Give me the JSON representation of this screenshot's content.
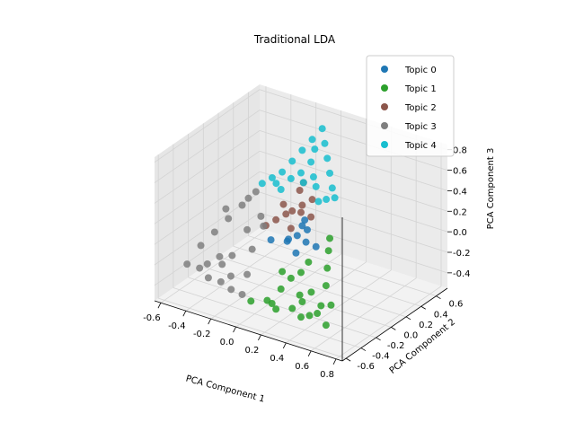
{
  "chart_data": {
    "type": "scatter",
    "projection": "3d",
    "title": "Traditional LDA",
    "xlabel": "PCA Component 1",
    "ylabel": "PCA Component 2",
    "zlabel": "PCA Component 3",
    "xlim": [
      -0.65,
      0.85
    ],
    "ylim": [
      -0.65,
      0.75
    ],
    "zlim": [
      -0.55,
      0.85
    ],
    "xticks": [
      "-0.6",
      "-0.4",
      "-0.2",
      "0.0",
      "0.2",
      "0.4",
      "0.6",
      "0.8"
    ],
    "yticks": [
      "-0.6",
      "-0.4",
      "-0.2",
      "0.0",
      "0.2",
      "0.4",
      "0.6"
    ],
    "zticks": [
      "-0.4",
      "-0.2",
      "0.0",
      "0.2",
      "0.4",
      "0.6",
      "0.8"
    ],
    "grid": true,
    "legend_position": "top-right",
    "series": [
      {
        "name": "Topic 0",
        "color": "#1f77b4",
        "points": [
          [
            0.1,
            0.0,
            0.05
          ],
          [
            0.05,
            -0.05,
            0.0
          ],
          [
            0.15,
            0.05,
            0.1
          ],
          [
            0.0,
            0.05,
            -0.05
          ],
          [
            0.2,
            -0.05,
            0.05
          ],
          [
            0.1,
            0.1,
            0.15
          ],
          [
            -0.05,
            -0.1,
            0.0
          ],
          [
            0.15,
            -0.1,
            -0.05
          ],
          [
            0.05,
            0.15,
            0.05
          ],
          [
            0.25,
            0.0,
            0.0
          ]
        ]
      },
      {
        "name": "Topic 1",
        "color": "#2ca02c",
        "points": [
          [
            0.6,
            -0.45,
            -0.4
          ],
          [
            0.5,
            -0.4,
            -0.35
          ],
          [
            0.4,
            -0.45,
            -0.4
          ],
          [
            0.3,
            -0.4,
            -0.38
          ],
          [
            0.2,
            -0.45,
            -0.4
          ],
          [
            0.1,
            -0.4,
            -0.38
          ],
          [
            0.0,
            -0.45,
            -0.4
          ],
          [
            0.55,
            -0.3,
            -0.3
          ],
          [
            0.45,
            -0.2,
            -0.2
          ],
          [
            0.4,
            -0.1,
            -0.1
          ],
          [
            0.35,
            0.0,
            0.0
          ],
          [
            0.3,
            0.1,
            0.05
          ],
          [
            0.25,
            -0.2,
            -0.15
          ],
          [
            0.3,
            -0.3,
            -0.3
          ],
          [
            0.2,
            -0.25,
            -0.2
          ],
          [
            0.15,
            -0.3,
            -0.3
          ],
          [
            0.1,
            -0.2,
            -0.2
          ],
          [
            0.35,
            -0.35,
            -0.32
          ],
          [
            0.5,
            -0.35,
            -0.3
          ],
          [
            0.45,
            -0.42,
            -0.38
          ],
          [
            0.15,
            -0.42,
            -0.38
          ],
          [
            0.25,
            -0.1,
            -0.1
          ],
          [
            0.38,
            -0.28,
            -0.25
          ]
        ]
      },
      {
        "name": "Topic 2",
        "color": "#8c564b",
        "points": [
          [
            0.0,
            0.1,
            0.2
          ],
          [
            0.05,
            0.15,
            0.25
          ],
          [
            -0.1,
            0.05,
            0.1
          ],
          [
            0.1,
            0.2,
            0.3
          ],
          [
            0.0,
            0.2,
            0.35
          ],
          [
            -0.05,
            0.1,
            0.15
          ],
          [
            0.15,
            0.1,
            0.2
          ],
          [
            0.05,
            0.0,
            0.1
          ],
          [
            -0.15,
            0.0,
            0.05
          ],
          [
            0.1,
            0.05,
            0.25
          ],
          [
            0.0,
            0.25,
            0.4
          ],
          [
            -0.1,
            0.15,
            0.2
          ]
        ]
      },
      {
        "name": "Topic 3",
        "color": "#7f7f7f",
        "points": [
          [
            -0.6,
            -0.3,
            -0.35
          ],
          [
            -0.5,
            -0.3,
            -0.35
          ],
          [
            -0.4,
            -0.35,
            -0.38
          ],
          [
            -0.3,
            -0.35,
            -0.38
          ],
          [
            -0.2,
            -0.38,
            -0.4
          ],
          [
            -0.1,
            -0.4,
            -0.4
          ],
          [
            -0.55,
            -0.2,
            -0.2
          ],
          [
            -0.5,
            -0.1,
            -0.1
          ],
          [
            -0.45,
            0.0,
            0.0
          ],
          [
            -0.4,
            0.1,
            0.1
          ],
          [
            -0.35,
            0.2,
            0.2
          ],
          [
            -0.4,
            -0.2,
            -0.25
          ],
          [
            -0.3,
            -0.2,
            -0.2
          ],
          [
            -0.3,
            0.0,
            -0.05
          ],
          [
            -0.25,
            0.1,
            0.05
          ],
          [
            -0.2,
            -0.1,
            -0.15
          ],
          [
            -0.15,
            -0.25,
            -0.3
          ],
          [
            -0.45,
            -0.28,
            -0.3
          ],
          [
            -0.35,
            -0.25,
            -0.28
          ],
          [
            -0.25,
            -0.3,
            -0.33
          ],
          [
            -0.5,
            0.05,
            0.05
          ],
          [
            -0.38,
            0.15,
            0.15
          ],
          [
            -0.2,
            0.05,
            0.0
          ]
        ]
      },
      {
        "name": "Topic 4",
        "color": "#17becf",
        "points": [
          [
            0.0,
            0.5,
            0.8
          ],
          [
            -0.05,
            0.45,
            0.7
          ],
          [
            0.05,
            0.45,
            0.7
          ],
          [
            -0.1,
            0.4,
            0.6
          ],
          [
            0.1,
            0.4,
            0.6
          ],
          [
            -0.15,
            0.35,
            0.5
          ],
          [
            0.15,
            0.35,
            0.5
          ],
          [
            -0.2,
            0.3,
            0.4
          ],
          [
            0.2,
            0.3,
            0.4
          ],
          [
            -0.25,
            0.25,
            0.35
          ],
          [
            0.25,
            0.25,
            0.35
          ],
          [
            0.0,
            0.35,
            0.55
          ],
          [
            -0.05,
            0.3,
            0.45
          ],
          [
            0.05,
            0.3,
            0.45
          ],
          [
            0.0,
            0.25,
            0.4
          ],
          [
            -0.1,
            0.25,
            0.4
          ],
          [
            0.1,
            0.25,
            0.4
          ],
          [
            -0.15,
            0.2,
            0.3
          ],
          [
            0.15,
            0.2,
            0.3
          ],
          [
            -0.3,
            0.2,
            0.3
          ],
          [
            0.0,
            0.4,
            0.65
          ],
          [
            -0.2,
            0.22,
            0.33
          ],
          [
            0.2,
            0.22,
            0.33
          ]
        ]
      }
    ]
  }
}
